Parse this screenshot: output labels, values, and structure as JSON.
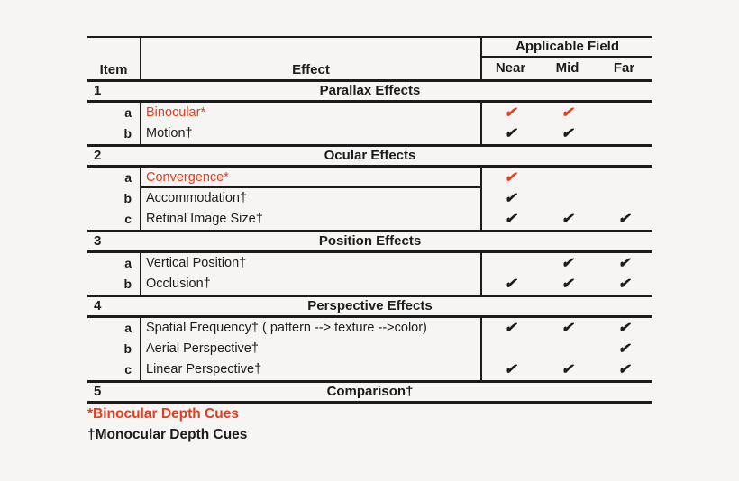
{
  "page": {
    "background": "#f6f5f3"
  },
  "colors": {
    "accent_red": "#e63c1e",
    "ink": "#1c1c1c"
  },
  "table": {
    "header": {
      "item": "Item",
      "effect": "Effect",
      "group": "Applicable Field",
      "fields": [
        "Near",
        "Mid",
        "Far"
      ]
    },
    "check_glyph": "✔",
    "sections": [
      {
        "num": "1",
        "title": "Parallax Effects",
        "rows": [
          {
            "item": "a",
            "effect": "Binocular*",
            "red": true,
            "checks": [
              "✔",
              "✔",
              ""
            ]
          },
          {
            "item": "b",
            "effect": "Motion†",
            "red": false,
            "checks": [
              "✔",
              "✔",
              ""
            ]
          }
        ]
      },
      {
        "num": "2",
        "title": "Ocular Effects",
        "rows": [
          {
            "item": "a",
            "effect": "Convergence*",
            "red": true,
            "boxed": true,
            "checks": [
              "✔",
              "",
              ""
            ]
          },
          {
            "item": "b",
            "effect": "Accommodation†",
            "red": false,
            "checks": [
              "✔",
              "",
              ""
            ]
          },
          {
            "item": "c",
            "effect": "Retinal Image Size†",
            "red": false,
            "checks": [
              "✔",
              "✔",
              "✔"
            ]
          }
        ]
      },
      {
        "num": "3",
        "title": "Position Effects",
        "rows": [
          {
            "item": "a",
            "effect": "Vertical Position†",
            "red": false,
            "checks": [
              "",
              "✔",
              "✔"
            ]
          },
          {
            "item": "b",
            "effect": "Occlusion†",
            "red": false,
            "checks": [
              "✔",
              "✔",
              "✔"
            ]
          }
        ]
      },
      {
        "num": "4",
        "title": "Perspective Effects",
        "rows": [
          {
            "item": "a",
            "effect": "Spatial Frequency† ( pattern --> texture -->color)",
            "red": false,
            "checks": [
              "✔",
              "✔",
              "✔"
            ]
          },
          {
            "item": "b",
            "effect": "Aerial Perspective†",
            "red": false,
            "checks": [
              "",
              "",
              "✔"
            ]
          },
          {
            "item": "c",
            "effect": "Linear Perspective†",
            "red": false,
            "checks": [
              "✔",
              "✔",
              "✔"
            ]
          }
        ]
      },
      {
        "num": "5",
        "title": "Comparison†",
        "rows": []
      }
    ]
  },
  "footnotes": [
    {
      "text": "*Binocular Depth Cues",
      "red": true
    },
    {
      "text": "†Monocular Depth Cues",
      "red": false
    }
  ]
}
